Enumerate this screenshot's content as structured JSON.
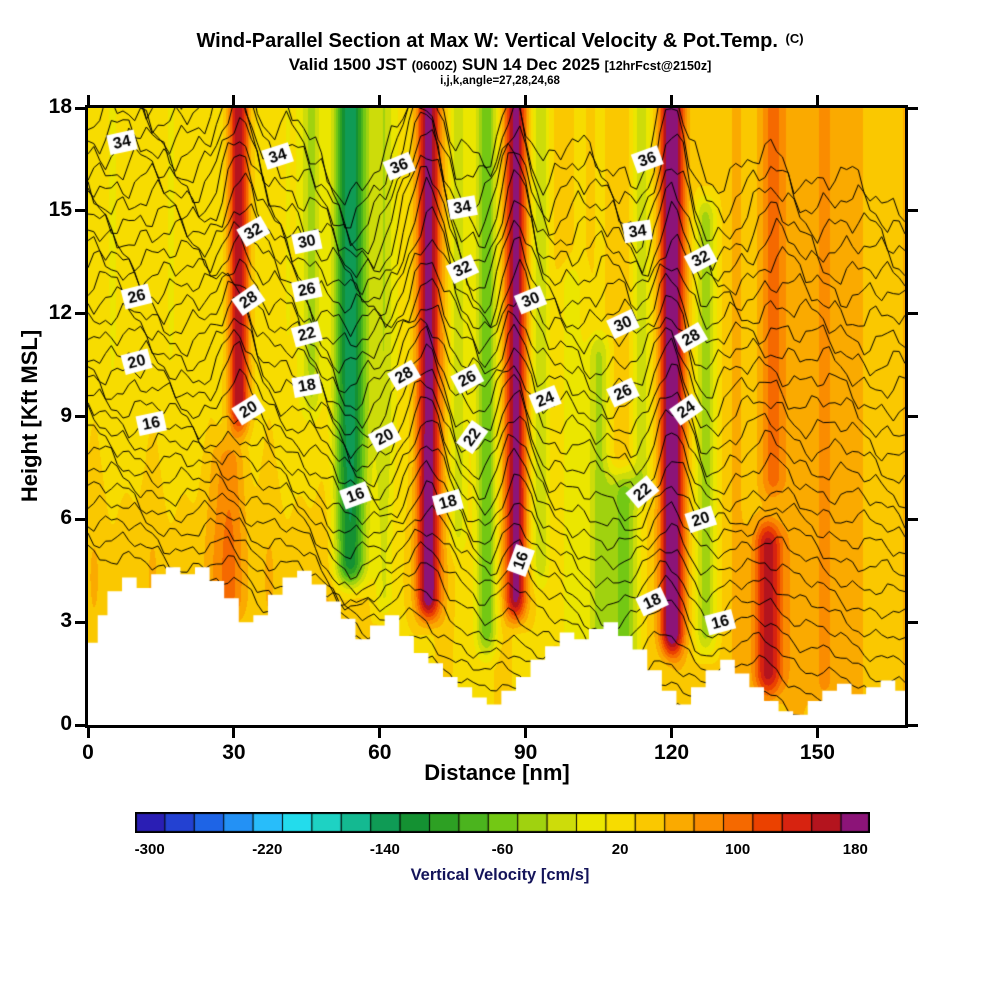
{
  "header": {
    "title": "Wind-Parallel Section at Max W: Vertical Velocity & Pot.Temp.",
    "title_unit": "(C)",
    "valid_prefix": "Valid 1500 JST",
    "valid_z": "(0600Z)",
    "valid_date": "SUN 14 Dec 2025",
    "forecast_tag": "[12hrFcst@2150z]",
    "params_line": "i,j,k,angle=27,28,24,68"
  },
  "chart_data": {
    "type": "heatmap",
    "subtype": "vertical-cross-section with filled vertical-velocity contours and potential-temperature isolines",
    "title": "Wind-Parallel Section at Max W: Vertical Velocity & Pot.Temp. (C)",
    "xlabel": "Distance [nm]",
    "ylabel": "Height [Kft MSL]",
    "xlim": [
      0,
      168
    ],
    "ylim": [
      0,
      18
    ],
    "xticks": [
      0,
      30,
      60,
      90,
      120,
      150
    ],
    "yticks": [
      0,
      3,
      6,
      9,
      12,
      15,
      18
    ],
    "grid": false,
    "colorbar": {
      "label": "Vertical Velocity [cm/s]",
      "ticks": [
        -300,
        -220,
        -140,
        -60,
        20,
        100,
        180
      ],
      "min": -310,
      "max": 190,
      "step": 20,
      "colors": [
        "#2a1eb4",
        "#2341d2",
        "#1e64e6",
        "#2391f5",
        "#28bdfa",
        "#23dcec",
        "#1ed2c3",
        "#14b991",
        "#0f9b55",
        "#149132",
        "#2da023",
        "#4bb41e",
        "#73c814",
        "#a0d20f",
        "#cddc0a",
        "#ebe600",
        "#f7dc00",
        "#fac800",
        "#faaa00",
        "#fa8c00",
        "#f56900",
        "#eb4100",
        "#d72310",
        "#b4141e",
        "#8c1478"
      ]
    },
    "contour_variable": "Potential Temperature",
    "contour_unit": "C",
    "contour_interval": 1,
    "contour_range": [
      8,
      38
    ],
    "contour_labels": [
      {
        "v": 34,
        "x": 7,
        "y": 17.0,
        "rot": -12
      },
      {
        "v": 34,
        "x": 39,
        "y": 16.6,
        "rot": -18
      },
      {
        "v": 36,
        "x": 64,
        "y": 16.3,
        "rot": -22
      },
      {
        "v": 34,
        "x": 77,
        "y": 15.1,
        "rot": -10
      },
      {
        "v": 36,
        "x": 115,
        "y": 16.5,
        "rot": -20
      },
      {
        "v": 34,
        "x": 113,
        "y": 14.4,
        "rot": -8
      },
      {
        "v": 32,
        "x": 34,
        "y": 14.4,
        "rot": -30
      },
      {
        "v": 30,
        "x": 45,
        "y": 14.1,
        "rot": -12
      },
      {
        "v": 32,
        "x": 77,
        "y": 13.3,
        "rot": -25
      },
      {
        "v": 32,
        "x": 126,
        "y": 13.6,
        "rot": -28
      },
      {
        "v": 26,
        "x": 10,
        "y": 12.5,
        "rot": -14
      },
      {
        "v": 28,
        "x": 33,
        "y": 12.4,
        "rot": -35
      },
      {
        "v": 26,
        "x": 45,
        "y": 12.7,
        "rot": -12
      },
      {
        "v": 30,
        "x": 91,
        "y": 12.4,
        "rot": -22
      },
      {
        "v": 30,
        "x": 110,
        "y": 11.7,
        "rot": -25
      },
      {
        "v": 28,
        "x": 124,
        "y": 11.3,
        "rot": -30
      },
      {
        "v": 22,
        "x": 45,
        "y": 11.4,
        "rot": -15
      },
      {
        "v": 20,
        "x": 10,
        "y": 10.6,
        "rot": -15
      },
      {
        "v": 28,
        "x": 65,
        "y": 10.2,
        "rot": -30
      },
      {
        "v": 26,
        "x": 78,
        "y": 10.1,
        "rot": -28
      },
      {
        "v": 24,
        "x": 94,
        "y": 9.5,
        "rot": -22
      },
      {
        "v": 26,
        "x": 110,
        "y": 9.7,
        "rot": -25
      },
      {
        "v": 24,
        "x": 123,
        "y": 9.2,
        "rot": -35
      },
      {
        "v": 16,
        "x": 13,
        "y": 8.8,
        "rot": -12
      },
      {
        "v": 20,
        "x": 33,
        "y": 9.2,
        "rot": -32
      },
      {
        "v": 18,
        "x": 45,
        "y": 9.9,
        "rot": -10
      },
      {
        "v": 20,
        "x": 61,
        "y": 8.4,
        "rot": -28
      },
      {
        "v": 22,
        "x": 79,
        "y": 8.4,
        "rot": -55
      },
      {
        "v": 16,
        "x": 55,
        "y": 6.7,
        "rot": -20
      },
      {
        "v": 18,
        "x": 74,
        "y": 6.5,
        "rot": -15
      },
      {
        "v": 16,
        "x": 89,
        "y": 4.8,
        "rot": -70
      },
      {
        "v": 22,
        "x": 114,
        "y": 6.8,
        "rot": -40
      },
      {
        "v": 20,
        "x": 126,
        "y": 6.0,
        "rot": -18
      },
      {
        "v": 18,
        "x": 116,
        "y": 3.6,
        "rot": -25
      },
      {
        "v": 16,
        "x": 130,
        "y": 3.0,
        "rot": -15
      }
    ],
    "velocity_bands": [
      {
        "x": 31,
        "w": 2.2,
        "peak": 152,
        "z0": 8.0,
        "z1": 19.5
      },
      {
        "x": 29,
        "w": 3.0,
        "peak": 62,
        "z0": 2.5,
        "z1": 9.0
      },
      {
        "x": 46,
        "w": 2.0,
        "peak": -48,
        "z0": 8.5,
        "z1": 19.5
      },
      {
        "x": 54,
        "w": 3.2,
        "peak": -162,
        "z0": 3.5,
        "z1": 19.5
      },
      {
        "x": 61,
        "w": 2.0,
        "peak": -58,
        "z0": 2.5,
        "z1": 19.5
      },
      {
        "x": 70,
        "w": 2.4,
        "peak": 168,
        "z0": 2.5,
        "z1": 19.5
      },
      {
        "x": 76,
        "w": 1.8,
        "peak": -42,
        "z0": 4.5,
        "z1": 19.5
      },
      {
        "x": 82,
        "w": 2.2,
        "peak": -88,
        "z0": 1.5,
        "z1": 19.5
      },
      {
        "x": 88,
        "w": 2.2,
        "peak": 155,
        "z0": 2.5,
        "z1": 19.5
      },
      {
        "x": 93,
        "w": 1.8,
        "peak": -52,
        "z0": 3.5,
        "z1": 19.5
      },
      {
        "x": 99,
        "w": 2.5,
        "peak": -38,
        "z0": 1.5,
        "z1": 14.0
      },
      {
        "x": 105,
        "w": 2.5,
        "peak": -62,
        "z0": 1.0,
        "z1": 12.0
      },
      {
        "x": 110,
        "w": 3.0,
        "peak": -102,
        "z0": 1.0,
        "z1": 8.0
      },
      {
        "x": 114,
        "w": 2.0,
        "peak": -55,
        "z0": 6.0,
        "z1": 19.5
      },
      {
        "x": 120,
        "w": 2.4,
        "peak": 168,
        "z0": 1.5,
        "z1": 19.5
      },
      {
        "x": 127,
        "w": 2.2,
        "peak": -78,
        "z0": 1.5,
        "z1": 16.0
      },
      {
        "x": 140,
        "w": 3.0,
        "peak": 122,
        "z0": 0.3,
        "z1": 6.5
      },
      {
        "x": 141,
        "w": 2.5,
        "peak": 62,
        "z0": 6.0,
        "z1": 19.5
      },
      {
        "x": 152,
        "w": 4.0,
        "peak": 28,
        "z0": 0.0,
        "z1": 19.5
      }
    ],
    "background_w": {
      "base": 16,
      "east_gradient": 32,
      "low_level_boost": 26
    },
    "terrain_profile": [
      [
        0,
        2.4
      ],
      [
        2,
        3.2
      ],
      [
        4,
        3.9
      ],
      [
        7,
        4.3
      ],
      [
        10,
        4.0
      ],
      [
        13,
        4.4
      ],
      [
        16,
        4.6
      ],
      [
        19,
        4.4
      ],
      [
        22,
        4.6
      ],
      [
        25,
        4.2
      ],
      [
        28,
        3.7
      ],
      [
        31,
        3.0
      ],
      [
        34,
        3.2
      ],
      [
        37,
        3.8
      ],
      [
        40,
        4.3
      ],
      [
        43,
        4.5
      ],
      [
        46,
        4.1
      ],
      [
        49,
        3.6
      ],
      [
        52,
        3.1
      ],
      [
        55,
        2.5
      ],
      [
        58,
        2.9
      ],
      [
        61,
        3.2
      ],
      [
        64,
        2.6
      ],
      [
        67,
        2.1
      ],
      [
        70,
        1.8
      ],
      [
        73,
        1.4
      ],
      [
        76,
        1.1
      ],
      [
        79,
        0.8
      ],
      [
        82,
        0.6
      ],
      [
        85,
        1.0
      ],
      [
        88,
        1.4
      ],
      [
        91,
        1.9
      ],
      [
        94,
        2.3
      ],
      [
        97,
        2.7
      ],
      [
        100,
        2.5
      ],
      [
        103,
        2.8
      ],
      [
        106,
        3.0
      ],
      [
        109,
        2.6
      ],
      [
        112,
        2.2
      ],
      [
        115,
        1.6
      ],
      [
        118,
        1.0
      ],
      [
        121,
        0.6
      ],
      [
        124,
        1.1
      ],
      [
        127,
        1.6
      ],
      [
        130,
        1.9
      ],
      [
        133,
        1.5
      ],
      [
        136,
        1.1
      ],
      [
        139,
        0.7
      ],
      [
        142,
        0.4
      ],
      [
        145,
        0.3
      ],
      [
        148,
        0.7
      ],
      [
        151,
        1.0
      ],
      [
        154,
        1.2
      ],
      [
        157,
        0.9
      ],
      [
        160,
        1.1
      ],
      [
        163,
        1.3
      ],
      [
        166,
        1.0
      ],
      [
        168,
        0.9
      ]
    ]
  }
}
